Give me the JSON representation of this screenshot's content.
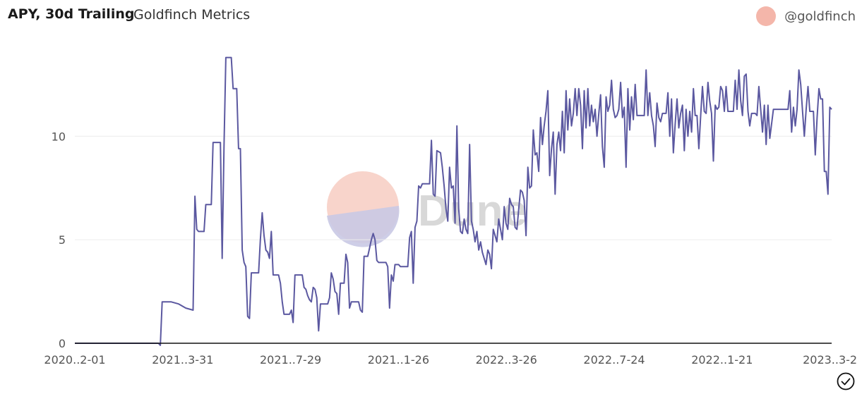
{
  "header": {
    "title": "APY, 30d Trailing",
    "subtitle": "Goldfinch Metrics",
    "author": "@goldfinch"
  },
  "watermark": {
    "text": "Dune"
  },
  "colors": {
    "line": "#5b58a0",
    "grid": "#ececec",
    "axis": "#111111",
    "avatar": "#f4b6aa",
    "watermark_text": "#d8d8d8"
  },
  "icons": {
    "author_avatar": "avatar-circle",
    "status": "check-circle-icon"
  },
  "chart_data": {
    "type": "line",
    "title": "APY, 30d Trailing",
    "xlabel": "",
    "ylabel": "",
    "x_start": "2020-12-01",
    "x_end": "2023-03-24",
    "ylim": [
      0,
      14
    ],
    "yticks": [
      0,
      5,
      10
    ],
    "xtick_labels": [
      "2020..2-01",
      "2021..3-31",
      "2021..7-29",
      "2021..1-26",
      "2022..3-26",
      "2022..7-24",
      "2022..1-21",
      "2023..3-2"
    ],
    "grid": true,
    "legend": "none",
    "series": [
      {
        "values": [
          [
            0,
            0
          ],
          [
            46,
            0
          ],
          [
            47,
            -0.1
          ],
          [
            48,
            2.0
          ],
          [
            53,
            2.0
          ],
          [
            57,
            1.9
          ],
          [
            61,
            1.7
          ],
          [
            65,
            1.6
          ],
          [
            66,
            7.1
          ],
          [
            67,
            5.5
          ],
          [
            68,
            5.4
          ],
          [
            71,
            5.4
          ],
          [
            72,
            6.7
          ],
          [
            75,
            6.7
          ],
          [
            76,
            9.7
          ],
          [
            80,
            9.7
          ],
          [
            81,
            4.1
          ],
          [
            82,
            9.5
          ],
          [
            83,
            13.8
          ],
          [
            86,
            13.8
          ],
          [
            87,
            12.3
          ],
          [
            89,
            12.3
          ],
          [
            90,
            9.4
          ],
          [
            91,
            9.4
          ],
          [
            92,
            4.5
          ],
          [
            93,
            3.9
          ],
          [
            94,
            3.7
          ],
          [
            95,
            1.3
          ],
          [
            96,
            1.2
          ],
          [
            97,
            3.4
          ],
          [
            101,
            3.4
          ],
          [
            102,
            5.0
          ],
          [
            103,
            6.3
          ],
          [
            104,
            5.2
          ],
          [
            105,
            4.5
          ],
          [
            106,
            4.4
          ],
          [
            107,
            4.1
          ],
          [
            108,
            5.4
          ],
          [
            109,
            3.3
          ],
          [
            112,
            3.3
          ],
          [
            113,
            2.9
          ],
          [
            114,
            2.0
          ],
          [
            115,
            1.4
          ],
          [
            118,
            1.4
          ],
          [
            119,
            1.6
          ],
          [
            120,
            1.0
          ],
          [
            121,
            3.3
          ],
          [
            125,
            3.3
          ],
          [
            126,
            2.7
          ],
          [
            127,
            2.6
          ],
          [
            128,
            2.3
          ],
          [
            129,
            2.1
          ],
          [
            130,
            2.0
          ],
          [
            131,
            2.7
          ],
          [
            132,
            2.6
          ],
          [
            133,
            2.2
          ],
          [
            134,
            0.6
          ],
          [
            135,
            1.9
          ],
          [
            139,
            1.9
          ],
          [
            140,
            2.2
          ],
          [
            141,
            3.4
          ],
          [
            142,
            3.1
          ],
          [
            143,
            2.5
          ],
          [
            144,
            2.4
          ],
          [
            145,
            1.4
          ],
          [
            146,
            2.9
          ],
          [
            148,
            2.9
          ],
          [
            149,
            4.3
          ],
          [
            150,
            3.9
          ],
          [
            151,
            1.7
          ],
          [
            152,
            2.0
          ],
          [
            156,
            2.0
          ],
          [
            157,
            1.6
          ],
          [
            158,
            1.5
          ],
          [
            159,
            4.2
          ],
          [
            161,
            4.2
          ],
          [
            162,
            4.6
          ],
          [
            163,
            5.0
          ],
          [
            164,
            5.3
          ],
          [
            165,
            5.0
          ],
          [
            166,
            4.0
          ],
          [
            167,
            3.9
          ],
          [
            171,
            3.9
          ],
          [
            172,
            3.7
          ],
          [
            173,
            1.7
          ],
          [
            174,
            3.3
          ],
          [
            175,
            3.0
          ],
          [
            176,
            3.8
          ],
          [
            178,
            3.8
          ],
          [
            179,
            3.7
          ],
          [
            183,
            3.7
          ],
          [
            184,
            5.1
          ],
          [
            185,
            5.4
          ],
          [
            186,
            2.9
          ],
          [
            187,
            5.6
          ],
          [
            188,
            5.9
          ],
          [
            189,
            7.6
          ],
          [
            190,
            7.5
          ],
          [
            191,
            7.7
          ],
          [
            195,
            7.7
          ],
          [
            196,
            9.8
          ],
          [
            197,
            7.2
          ],
          [
            198,
            7.1
          ],
          [
            199,
            9.3
          ],
          [
            201,
            9.2
          ],
          [
            202,
            8.5
          ],
          [
            203,
            7.6
          ],
          [
            204,
            6.5
          ],
          [
            205,
            5.9
          ],
          [
            206,
            8.5
          ],
          [
            207,
            7.5
          ],
          [
            208,
            7.6
          ],
          [
            209,
            5.8
          ],
          [
            210,
            10.5
          ],
          [
            211,
            6.5
          ],
          [
            212,
            5.4
          ],
          [
            213,
            5.3
          ],
          [
            214,
            6.0
          ],
          [
            215,
            5.5
          ],
          [
            216,
            5.3
          ],
          [
            217,
            9.6
          ],
          [
            218,
            5.9
          ],
          [
            219,
            5.5
          ],
          [
            220,
            4.9
          ],
          [
            221,
            5.4
          ],
          [
            222,
            4.5
          ],
          [
            223,
            4.9
          ],
          [
            224,
            4.4
          ],
          [
            225,
            4.1
          ],
          [
            226,
            3.8
          ],
          [
            227,
            4.5
          ],
          [
            228,
            4.3
          ],
          [
            229,
            3.6
          ],
          [
            230,
            5.5
          ],
          [
            231,
            5.2
          ],
          [
            232,
            4.9
          ],
          [
            233,
            6.0
          ],
          [
            234,
            5.5
          ],
          [
            235,
            5.0
          ],
          [
            236,
            6.6
          ],
          [
            237,
            5.8
          ],
          [
            238,
            5.5
          ],
          [
            239,
            7.0
          ],
          [
            240,
            6.7
          ],
          [
            241,
            6.6
          ],
          [
            242,
            5.6
          ],
          [
            243,
            5.5
          ],
          [
            244,
            6.5
          ],
          [
            245,
            7.4
          ],
          [
            246,
            7.3
          ],
          [
            247,
            6.9
          ],
          [
            248,
            5.2
          ],
          [
            249,
            8.5
          ],
          [
            250,
            7.5
          ],
          [
            251,
            7.6
          ],
          [
            252,
            10.3
          ],
          [
            253,
            9.1
          ],
          [
            254,
            9.2
          ],
          [
            255,
            8.3
          ],
          [
            256,
            10.9
          ],
          [
            257,
            9.6
          ],
          [
            258,
            10.5
          ],
          [
            259,
            11.2
          ],
          [
            260,
            12.2
          ],
          [
            261,
            8.1
          ],
          [
            262,
            9.4
          ],
          [
            263,
            10.2
          ],
          [
            264,
            7.2
          ],
          [
            265,
            9.6
          ],
          [
            266,
            10.2
          ],
          [
            267,
            9.3
          ],
          [
            268,
            11.2
          ],
          [
            269,
            9.2
          ],
          [
            270,
            12.2
          ],
          [
            271,
            10.3
          ],
          [
            272,
            11.8
          ],
          [
            273,
            10.5
          ],
          [
            274,
            11.1
          ],
          [
            275,
            12.3
          ],
          [
            276,
            11.0
          ],
          [
            277,
            12.3
          ],
          [
            278,
            11.5
          ],
          [
            279,
            9.4
          ],
          [
            280,
            12.2
          ],
          [
            281,
            10.4
          ],
          [
            282,
            12.3
          ],
          [
            283,
            10.5
          ],
          [
            284,
            11.5
          ],
          [
            285,
            10.7
          ],
          [
            286,
            11.3
          ],
          [
            287,
            10.0
          ],
          [
            288,
            11.1
          ],
          [
            289,
            12.0
          ],
          [
            290,
            9.5
          ],
          [
            291,
            8.5
          ],
          [
            292,
            11.9
          ],
          [
            293,
            11.2
          ],
          [
            294,
            11.5
          ],
          [
            295,
            12.7
          ],
          [
            296,
            11.3
          ],
          [
            297,
            10.9
          ],
          [
            298,
            11.0
          ],
          [
            299,
            11.3
          ],
          [
            300,
            12.6
          ],
          [
            301,
            10.9
          ],
          [
            302,
            11.4
          ],
          [
            303,
            8.5
          ],
          [
            304,
            12.3
          ],
          [
            305,
            10.3
          ],
          [
            306,
            11.9
          ],
          [
            307,
            10.8
          ],
          [
            308,
            12.5
          ],
          [
            309,
            11.0
          ],
          [
            313,
            11.0
          ],
          [
            314,
            13.2
          ],
          [
            315,
            11.0
          ],
          [
            316,
            12.1
          ],
          [
            317,
            11.0
          ],
          [
            318,
            10.5
          ],
          [
            319,
            9.5
          ],
          [
            320,
            11.6
          ],
          [
            321,
            10.9
          ],
          [
            322,
            10.7
          ],
          [
            323,
            11.1
          ],
          [
            325,
            11.1
          ],
          [
            326,
            12.1
          ],
          [
            327,
            10.0
          ],
          [
            328,
            11.8
          ],
          [
            329,
            9.2
          ],
          [
            330,
            10.6
          ],
          [
            331,
            11.8
          ],
          [
            332,
            10.4
          ],
          [
            333,
            11.1
          ],
          [
            334,
            11.5
          ],
          [
            335,
            9.3
          ],
          [
            336,
            11.3
          ],
          [
            337,
            10.0
          ],
          [
            338,
            11.2
          ],
          [
            339,
            10.2
          ],
          [
            340,
            12.3
          ],
          [
            341,
            11.0
          ],
          [
            342,
            11.0
          ],
          [
            343,
            9.4
          ],
          [
            344,
            11.0
          ],
          [
            345,
            12.4
          ],
          [
            346,
            11.2
          ],
          [
            347,
            11.1
          ],
          [
            348,
            12.6
          ],
          [
            349,
            11.7
          ],
          [
            350,
            11.1
          ],
          [
            351,
            8.8
          ],
          [
            352,
            11.5
          ],
          [
            353,
            11.3
          ],
          [
            354,
            11.4
          ],
          [
            355,
            12.4
          ],
          [
            356,
            12.2
          ],
          [
            357,
            11.2
          ],
          [
            358,
            12.4
          ],
          [
            359,
            11.2
          ],
          [
            362,
            11.2
          ],
          [
            363,
            12.7
          ],
          [
            364,
            11.3
          ],
          [
            365,
            13.2
          ],
          [
            366,
            11.7
          ],
          [
            367,
            11.0
          ],
          [
            368,
            12.9
          ],
          [
            369,
            13.0
          ],
          [
            370,
            11.2
          ],
          [
            371,
            10.5
          ],
          [
            372,
            11.1
          ],
          [
            374,
            11.1
          ],
          [
            375,
            11.0
          ],
          [
            376,
            12.4
          ],
          [
            377,
            11.3
          ],
          [
            378,
            10.2
          ],
          [
            379,
            11.5
          ],
          [
            380,
            9.6
          ],
          [
            381,
            11.5
          ],
          [
            382,
            9.9
          ],
          [
            384,
            11.3
          ],
          [
            392,
            11.3
          ],
          [
            393,
            12.2
          ],
          [
            394,
            10.2
          ],
          [
            395,
            11.4
          ],
          [
            396,
            10.5
          ],
          [
            397,
            11.3
          ],
          [
            398,
            13.2
          ],
          [
            399,
            12.5
          ],
          [
            400,
            11.2
          ],
          [
            401,
            10.0
          ],
          [
            402,
            11.3
          ],
          [
            403,
            12.4
          ],
          [
            404,
            11.2
          ],
          [
            406,
            11.2
          ],
          [
            407,
            9.1
          ],
          [
            408,
            10.9
          ],
          [
            409,
            12.3
          ],
          [
            410,
            11.8
          ],
          [
            411,
            11.8
          ],
          [
            412,
            8.3
          ],
          [
            413,
            8.3
          ],
          [
            414,
            7.2
          ],
          [
            415,
            11.4
          ],
          [
            416,
            11.3
          ]
        ]
      }
    ]
  }
}
